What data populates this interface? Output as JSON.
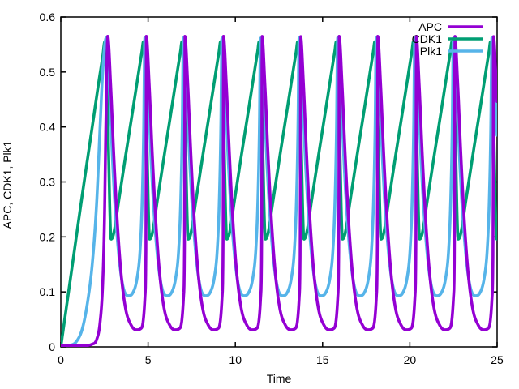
{
  "figure": {
    "background_color": "#ffffff",
    "axis_color": "#000000",
    "text_color": "#000000"
  },
  "chart_data": {
    "type": "line",
    "title": "",
    "xlabel": "Time",
    "ylabel": "APC, CDK1, Plk1",
    "xlim": [
      0,
      25
    ],
    "ylim": [
      0,
      0.6
    ],
    "x_ticks": [
      0,
      5,
      10,
      15,
      20,
      25
    ],
    "x_tick_labels": [
      "0",
      "5",
      "10",
      "15",
      "20",
      "25"
    ],
    "y_ticks": [
      0,
      0.1,
      0.2,
      0.3,
      0.4,
      0.5,
      0.6
    ],
    "y_tick_labels": [
      "0",
      "0.1",
      "0.2",
      "0.3",
      "0.4",
      "0.5",
      "0.6"
    ],
    "grid": false,
    "tick_style": "inward, mirrored on all four borders",
    "legend_position": "top-right-inside",
    "oscillation": {
      "period": 2.21,
      "first_cdk1_peak_t": 2.52,
      "num_peaks": 11,
      "description": "Relaxation oscillations: CDK1 ramps up linearly then crashes; Plk1 and APC fire as sequential sharp spikes just after each CDK1 peak."
    },
    "draw_order": [
      "CDK1",
      "Plk1",
      "APC"
    ],
    "series": [
      {
        "name": "APC",
        "color": "#9400d3",
        "peak_value": 0.565,
        "min_value": 0.031,
        "peak_phase_offset": 0.17,
        "initial_points": [
          [
            0,
            0.002
          ],
          [
            1.2,
            0.002
          ],
          [
            1.8,
            0.005
          ],
          [
            2.05,
            0.013
          ],
          [
            2.25,
            0.045
          ],
          [
            2.4,
            0.115
          ],
          [
            2.5,
            0.23
          ],
          [
            2.58,
            0.4
          ]
        ],
        "cycle_points": [
          [
            0.17,
            0.565
          ],
          [
            0.33,
            0.48
          ],
          [
            0.52,
            0.345
          ],
          [
            0.72,
            0.225
          ],
          [
            0.95,
            0.128
          ],
          [
            1.2,
            0.068
          ],
          [
            1.5,
            0.04
          ],
          [
            1.8,
            0.031
          ],
          [
            2.05,
            0.033
          ],
          [
            2.2,
            0.047
          ],
          [
            2.3,
            0.09
          ],
          [
            2.36,
            0.2
          ]
        ]
      },
      {
        "name": "CDK1",
        "color": "#009e73",
        "peak_value": 0.555,
        "min_value": 0.196,
        "peak_phase_offset": 0.0,
        "initial_points": [
          [
            0,
            0
          ],
          [
            0.6,
            0.135
          ],
          [
            1.2,
            0.27
          ],
          [
            1.8,
            0.4
          ],
          [
            2.2,
            0.487
          ],
          [
            2.4,
            0.528
          ]
        ],
        "cycle_points": [
          [
            0,
            0.555
          ],
          [
            0.1,
            0.5
          ],
          [
            0.22,
            0.35
          ],
          [
            0.3,
            0.235
          ],
          [
            0.36,
            0.196
          ],
          [
            0.5,
            0.205
          ],
          [
            0.8,
            0.266
          ],
          [
            1.2,
            0.349
          ],
          [
            1.6,
            0.43
          ],
          [
            2.0,
            0.512
          ],
          [
            2.13,
            0.538
          ]
        ]
      },
      {
        "name": "Plk1",
        "color": "#56b4e9",
        "peak_value": 0.562,
        "min_value": 0.093,
        "peak_phase_offset": 0.08,
        "initial_points": [
          [
            0,
            0.002
          ],
          [
            0.5,
            0.003
          ],
          [
            0.9,
            0.01
          ],
          [
            1.25,
            0.035
          ],
          [
            1.55,
            0.085
          ],
          [
            1.8,
            0.15
          ],
          [
            2.05,
            0.26
          ],
          [
            2.25,
            0.4
          ],
          [
            2.4,
            0.5
          ]
        ],
        "cycle_points": [
          [
            0.08,
            0.562
          ],
          [
            0.25,
            0.48
          ],
          [
            0.45,
            0.335
          ],
          [
            0.65,
            0.225
          ],
          [
            0.9,
            0.138
          ],
          [
            1.1,
            0.103
          ],
          [
            1.35,
            0.093
          ],
          [
            1.6,
            0.098
          ],
          [
            1.85,
            0.125
          ],
          [
            2.02,
            0.175
          ],
          [
            2.14,
            0.265
          ],
          [
            2.23,
            0.4
          ]
        ]
      }
    ]
  }
}
